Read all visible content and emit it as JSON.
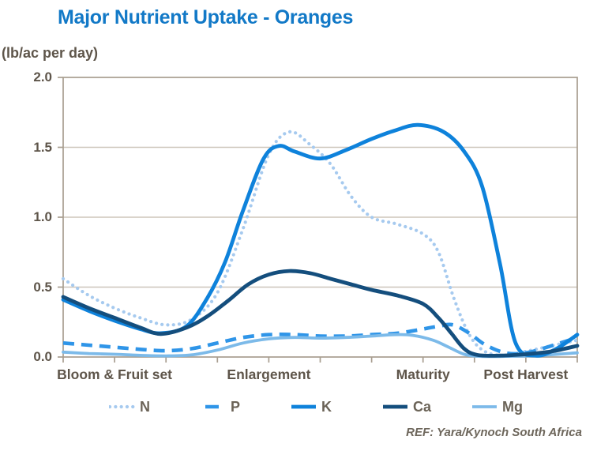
{
  "title": "Major Nutrient Uptake - Oranges",
  "y_axis_unit_label": "(lb/ac per day)",
  "ref_note": "REF: Yara/Kynoch South Africa",
  "colors": {
    "title": "#1279C7",
    "axis": "#A89E90",
    "grid": "#CDC5BA",
    "tick": "#5E554A",
    "legend": "#6B6357",
    "ref": "#6E675C"
  },
  "chart_data": {
    "type": "line",
    "title": "Major Nutrient Uptake - Oranges",
    "ylabel": "(lb/ac per day)",
    "ylim": [
      0.0,
      2.0
    ],
    "grid": true,
    "legend_position": "bottom",
    "y_ticks": [
      {
        "label": "2.0",
        "value": 2.0
      },
      {
        "label": "1.5",
        "value": 1.5
      },
      {
        "label": "1.0",
        "value": 1.0
      },
      {
        "label": "0.5",
        "value": 0.5
      },
      {
        "label": "0.0",
        "value": 0.0
      }
    ],
    "x_minor_tick_count": 11,
    "x_stages": [
      {
        "label": "Bloom & Fruit set",
        "pos": 0.1
      },
      {
        "label": "Enlargement",
        "pos": 0.4
      },
      {
        "label": "Maturity",
        "pos": 0.7
      },
      {
        "label": "Post Harvest",
        "pos": 0.9
      }
    ],
    "series": [
      {
        "name": "N",
        "color": "#A6CAEF",
        "style": "dotted",
        "width": 4.2,
        "points": [
          [
            0,
            0.56
          ],
          [
            0.05,
            0.44
          ],
          [
            0.1,
            0.35
          ],
          [
            0.15,
            0.28
          ],
          [
            0.2,
            0.23
          ],
          [
            0.25,
            0.27
          ],
          [
            0.3,
            0.46
          ],
          [
            0.35,
            0.92
          ],
          [
            0.4,
            1.45
          ],
          [
            0.44,
            1.61
          ],
          [
            0.48,
            1.52
          ],
          [
            0.52,
            1.38
          ],
          [
            0.56,
            1.15
          ],
          [
            0.6,
            1.0
          ],
          [
            0.65,
            0.95
          ],
          [
            0.7,
            0.88
          ],
          [
            0.73,
            0.75
          ],
          [
            0.76,
            0.42
          ],
          [
            0.79,
            0.16
          ],
          [
            0.82,
            0.04
          ],
          [
            0.86,
            0.01
          ],
          [
            0.9,
            0.04
          ],
          [
            0.95,
            0.08
          ],
          [
            1.0,
            0.12
          ]
        ]
      },
      {
        "name": "P",
        "color": "#2F95E8",
        "style": "dashed",
        "width": 4.6,
        "points": [
          [
            0,
            0.1
          ],
          [
            0.05,
            0.085
          ],
          [
            0.1,
            0.07
          ],
          [
            0.15,
            0.055
          ],
          [
            0.2,
            0.045
          ],
          [
            0.25,
            0.06
          ],
          [
            0.3,
            0.1
          ],
          [
            0.35,
            0.14
          ],
          [
            0.4,
            0.16
          ],
          [
            0.45,
            0.16
          ],
          [
            0.5,
            0.15
          ],
          [
            0.55,
            0.15
          ],
          [
            0.6,
            0.16
          ],
          [
            0.65,
            0.17
          ],
          [
            0.7,
            0.2
          ],
          [
            0.73,
            0.22
          ],
          [
            0.758,
            0.23
          ],
          [
            0.79,
            0.17
          ],
          [
            0.82,
            0.09
          ],
          [
            0.86,
            0.03
          ],
          [
            0.9,
            0.03
          ],
          [
            0.95,
            0.08
          ],
          [
            1.0,
            0.14
          ]
        ]
      },
      {
        "name": "K",
        "color": "#0E82DB",
        "style": "solid",
        "width": 4.8,
        "points": [
          [
            0,
            0.41
          ],
          [
            0.05,
            0.33
          ],
          [
            0.1,
            0.26
          ],
          [
            0.15,
            0.2
          ],
          [
            0.19,
            0.17
          ],
          [
            0.24,
            0.22
          ],
          [
            0.28,
            0.42
          ],
          [
            0.315,
            0.68
          ],
          [
            0.35,
            1.05
          ],
          [
            0.39,
            1.42
          ],
          [
            0.42,
            1.51
          ],
          [
            0.45,
            1.47
          ],
          [
            0.5,
            1.42
          ],
          [
            0.55,
            1.48
          ],
          [
            0.6,
            1.56
          ],
          [
            0.645,
            1.62
          ],
          [
            0.69,
            1.66
          ],
          [
            0.74,
            1.61
          ],
          [
            0.78,
            1.47
          ],
          [
            0.815,
            1.22
          ],
          [
            0.85,
            0.66
          ],
          [
            0.88,
            0.1
          ],
          [
            0.92,
            0.01
          ],
          [
            0.96,
            0.06
          ],
          [
            1.0,
            0.16
          ]
        ]
      },
      {
        "name": "Ca",
        "color": "#144E7D",
        "style": "solid",
        "width": 4.8,
        "points": [
          [
            0,
            0.43
          ],
          [
            0.05,
            0.35
          ],
          [
            0.1,
            0.28
          ],
          [
            0.15,
            0.21
          ],
          [
            0.19,
            0.165
          ],
          [
            0.24,
            0.21
          ],
          [
            0.28,
            0.29
          ],
          [
            0.32,
            0.4
          ],
          [
            0.36,
            0.52
          ],
          [
            0.4,
            0.59
          ],
          [
            0.44,
            0.615
          ],
          [
            0.48,
            0.6
          ],
          [
            0.52,
            0.56
          ],
          [
            0.56,
            0.52
          ],
          [
            0.6,
            0.48
          ],
          [
            0.65,
            0.44
          ],
          [
            0.7,
            0.38
          ],
          [
            0.73,
            0.28
          ],
          [
            0.755,
            0.17
          ],
          [
            0.78,
            0.06
          ],
          [
            0.805,
            0.015
          ],
          [
            0.85,
            0.01
          ],
          [
            0.9,
            0.02
          ],
          [
            0.95,
            0.04
          ],
          [
            1.0,
            0.08
          ]
        ]
      },
      {
        "name": "Mg",
        "color": "#7CBAE9",
        "style": "solid",
        "width": 3.8,
        "points": [
          [
            0,
            0.035
          ],
          [
            0.05,
            0.025
          ],
          [
            0.1,
            0.02
          ],
          [
            0.15,
            0.012
          ],
          [
            0.2,
            0.008
          ],
          [
            0.25,
            0.015
          ],
          [
            0.3,
            0.05
          ],
          [
            0.35,
            0.1
          ],
          [
            0.4,
            0.13
          ],
          [
            0.45,
            0.14
          ],
          [
            0.5,
            0.135
          ],
          [
            0.55,
            0.14
          ],
          [
            0.6,
            0.15
          ],
          [
            0.645,
            0.16
          ],
          [
            0.68,
            0.155
          ],
          [
            0.72,
            0.12
          ],
          [
            0.75,
            0.07
          ],
          [
            0.78,
            0.02
          ],
          [
            0.81,
            0.005
          ],
          [
            0.86,
            0.005
          ],
          [
            0.92,
            0.01
          ],
          [
            1.0,
            0.03
          ]
        ]
      }
    ]
  }
}
